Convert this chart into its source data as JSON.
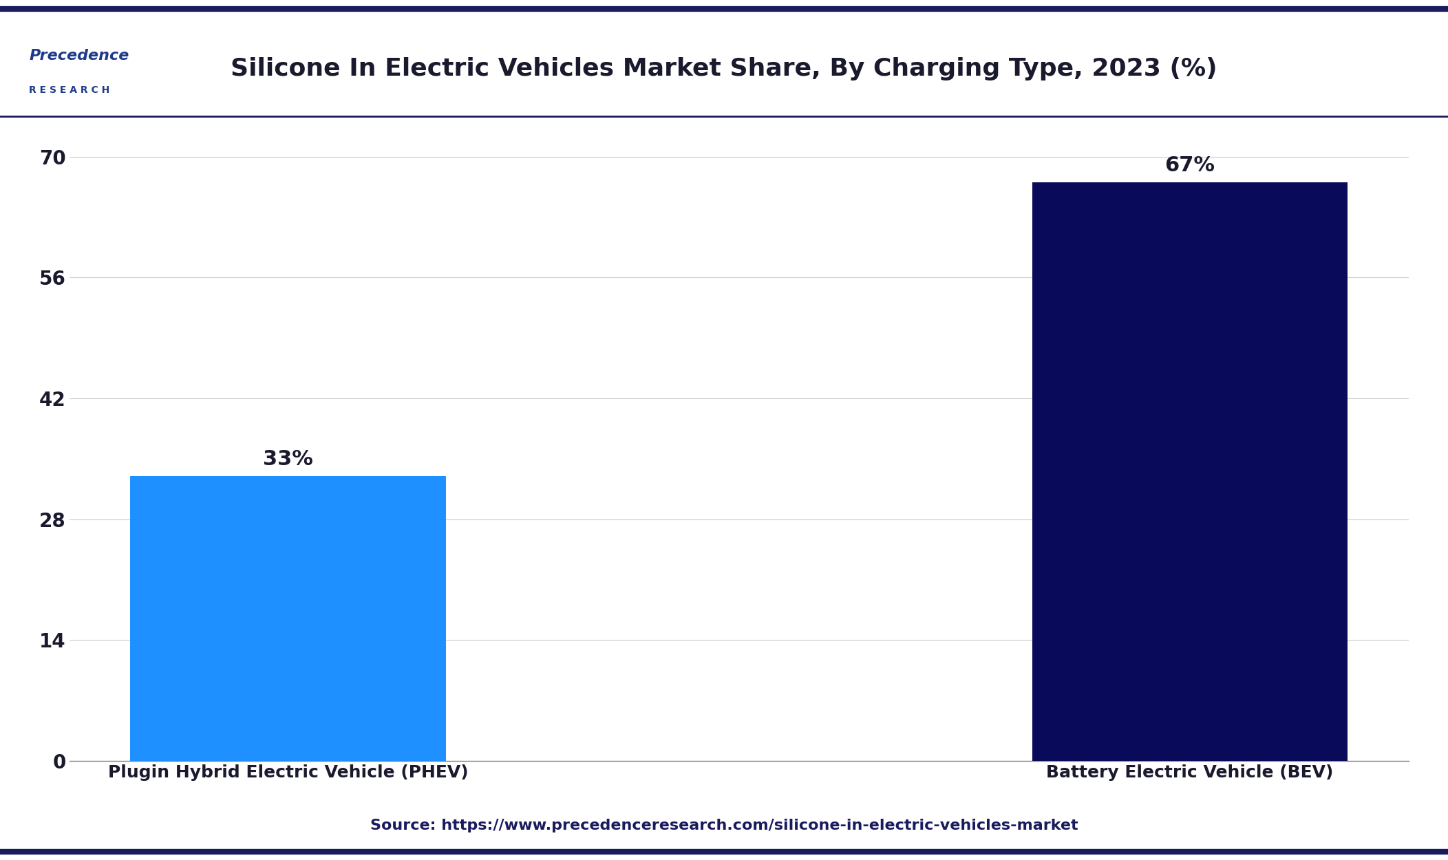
{
  "title": "Silicone In Electric Vehicles Market Share, By Charging Type, 2023 (%)",
  "categories": [
    "Plugin Hybrid Electric Vehicle (PHEV)",
    "Battery Electric Vehicle (BEV)"
  ],
  "values": [
    33,
    67
  ],
  "bar_colors": [
    "#1E90FF",
    "#0A0A5A"
  ],
  "bar_labels": [
    "33%",
    "67%"
  ],
  "yticks": [
    0,
    14,
    28,
    42,
    56,
    70
  ],
  "ylim": [
    0,
    75
  ],
  "source_text": "Source: https://www.precedenceresearch.com/silicone-in-electric-vehicles-market",
  "title_color": "#1a1a2e",
  "background_color": "#ffffff",
  "plot_bg_color": "#ffffff",
  "grid_color": "#cccccc",
  "bar_label_color": "#1a1a2e",
  "tick_label_color": "#1a1a2e",
  "source_color": "#1a1a5e",
  "top_border_color": "#1a1a5e",
  "bottom_border_color": "#1a1a5e",
  "logo_main_color": "#1E3A8A",
  "title_fontsize": 26,
  "tick_fontsize": 20,
  "bar_label_fontsize": 22,
  "source_fontsize": 16,
  "xlabel_fontsize": 18
}
